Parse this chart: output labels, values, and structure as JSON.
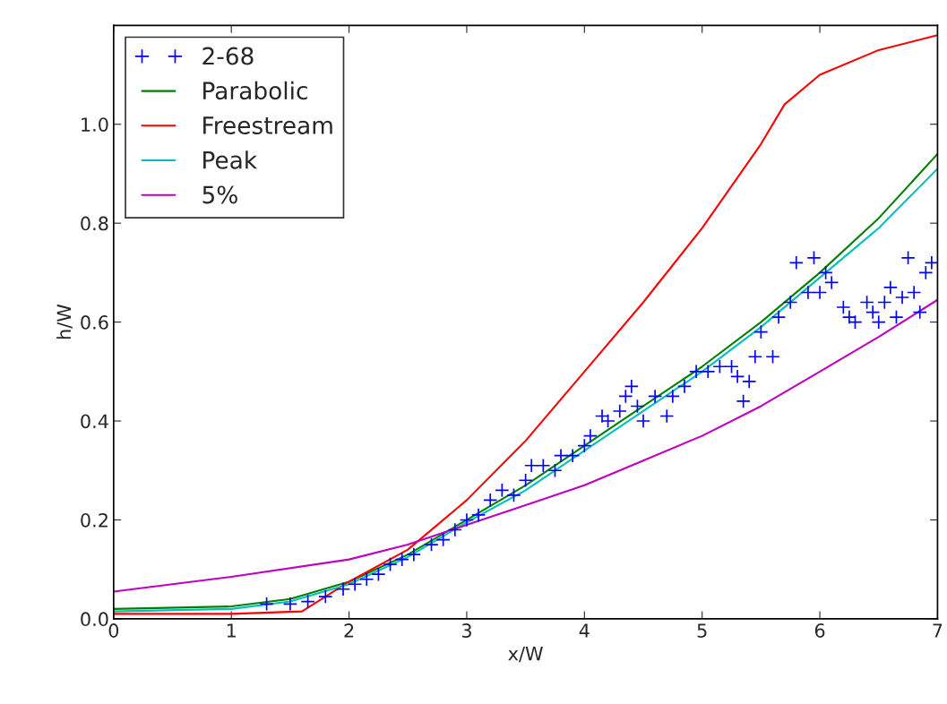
{
  "chart_data": {
    "type": "line",
    "xlabel": "x/W",
    "ylabel": "h/W",
    "xlim": [
      0,
      7
    ],
    "ylim": [
      0,
      1.2
    ],
    "xticks": [
      0,
      1,
      2,
      3,
      4,
      5,
      6,
      7
    ],
    "yticks": [
      {
        "value": 0,
        "label": "0.0"
      },
      0.2,
      0.4,
      0.6,
      0.8,
      {
        "value": 1,
        "label": "1.0"
      }
    ],
    "grid": false,
    "legend": "top left",
    "series": [
      {
        "name": "2-68",
        "type": "scatter",
        "marker": "cross",
        "color": "#0000ff",
        "x": [
          1.3,
          1.5,
          1.65,
          1.8,
          1.95,
          2.05,
          2.15,
          2.25,
          2.35,
          2.45,
          2.55,
          2.7,
          2.8,
          2.9,
          3.0,
          3.1,
          3.2,
          3.3,
          3.4,
          3.5,
          3.55,
          3.65,
          3.75,
          3.8,
          3.9,
          4.0,
          4.05,
          4.15,
          4.2,
          4.3,
          4.35,
          4.4,
          4.45,
          4.5,
          4.6,
          4.7,
          4.75,
          4.85,
          4.95,
          5.05,
          5.15,
          5.25,
          5.3,
          5.35,
          5.4,
          5.45,
          5.5,
          5.6,
          5.65,
          5.75,
          5.8,
          5.9,
          5.95,
          6.0,
          6.05,
          6.1,
          6.2,
          6.25,
          6.3,
          6.4,
          6.45,
          6.5,
          6.55,
          6.6,
          6.65,
          6.7,
          6.75,
          6.8,
          6.85,
          6.9,
          6.95
        ],
        "values": [
          0.03,
          0.03,
          0.035,
          0.045,
          0.06,
          0.07,
          0.08,
          0.09,
          0.11,
          0.12,
          0.13,
          0.15,
          0.16,
          0.18,
          0.2,
          0.21,
          0.24,
          0.26,
          0.25,
          0.28,
          0.31,
          0.31,
          0.3,
          0.33,
          0.33,
          0.35,
          0.37,
          0.41,
          0.4,
          0.42,
          0.45,
          0.47,
          0.43,
          0.4,
          0.45,
          0.41,
          0.45,
          0.47,
          0.5,
          0.5,
          0.51,
          0.51,
          0.49,
          0.44,
          0.48,
          0.53,
          0.58,
          0.53,
          0.61,
          0.64,
          0.72,
          0.66,
          0.73,
          0.66,
          0.7,
          0.68,
          0.63,
          0.61,
          0.6,
          0.64,
          0.62,
          0.6,
          0.64,
          0.67,
          0.61,
          0.65,
          0.73,
          0.66,
          0.62,
          0.7,
          0.72
        ]
      },
      {
        "name": "Parabolic",
        "color": "#008000",
        "x": [
          0,
          1,
          1.5,
          2,
          2.5,
          3,
          3.5,
          4,
          4.5,
          5,
          5.5,
          6,
          6.5,
          7
        ],
        "values": [
          0.02,
          0.025,
          0.04,
          0.075,
          0.13,
          0.2,
          0.27,
          0.35,
          0.43,
          0.51,
          0.6,
          0.7,
          0.81,
          0.94
        ]
      },
      {
        "name": "Freestream",
        "color": "#ff0000",
        "x": [
          0,
          1,
          1.6,
          1.8,
          2,
          2.5,
          3,
          3.5,
          4,
          4.5,
          5,
          5.5,
          5.7,
          6,
          6.5,
          7
        ],
        "values": [
          0.01,
          0.01,
          0.015,
          0.045,
          0.075,
          0.14,
          0.24,
          0.36,
          0.5,
          0.64,
          0.79,
          0.96,
          1.04,
          1.1,
          1.15,
          1.18
        ]
      },
      {
        "name": "Peak",
        "color": "#00bfbf",
        "x": [
          0,
          1,
          1.5,
          2,
          2.5,
          3,
          3.5,
          4,
          4.5,
          5,
          5.5,
          6,
          6.5,
          7
        ],
        "values": [
          0.015,
          0.02,
          0.035,
          0.07,
          0.125,
          0.195,
          0.26,
          0.34,
          0.42,
          0.5,
          0.59,
          0.69,
          0.79,
          0.91
        ]
      },
      {
        "name": "5%",
        "color": "#bf00bf",
        "x": [
          0,
          1,
          2,
          2.5,
          3,
          3.5,
          4,
          4.5,
          5,
          5.5,
          6,
          6.5,
          7
        ],
        "values": [
          0.055,
          0.085,
          0.12,
          0.15,
          0.19,
          0.23,
          0.27,
          0.32,
          0.37,
          0.43,
          0.5,
          0.57,
          0.645
        ]
      }
    ]
  }
}
